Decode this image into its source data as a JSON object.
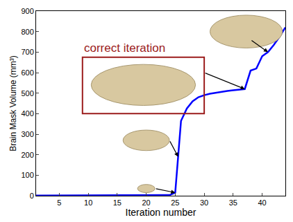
{
  "chart_data": {
    "type": "line",
    "x_label": "Iteration number",
    "y_label": "Brain Mask Volume (mm³)",
    "x": [
      1,
      2,
      3,
      4,
      5,
      6,
      7,
      8,
      9,
      10,
      11,
      12,
      13,
      14,
      15,
      16,
      17,
      18,
      19,
      20,
      21,
      22,
      23,
      24,
      25,
      26,
      27,
      28,
      29,
      30,
      31,
      32,
      33,
      34,
      35,
      36,
      37,
      38,
      39,
      40,
      41,
      42,
      43,
      44
    ],
    "values": [
      1,
      1,
      1,
      1,
      1,
      1,
      1,
      1,
      1,
      1,
      1,
      1,
      1,
      1,
      1,
      1,
      1,
      1,
      1,
      2,
      2,
      2,
      2,
      3,
      15,
      365,
      425,
      460,
      480,
      490,
      497,
      502,
      507,
      511,
      514,
      517,
      520,
      610,
      620,
      680,
      700,
      735,
      775,
      820
    ],
    "color": "#0000ff",
    "xlim": [
      1,
      44
    ],
    "ylim": [
      0,
      900
    ],
    "xticks": [
      5,
      10,
      15,
      20,
      25,
      30,
      35,
      40
    ],
    "yticks": [
      0,
      100,
      200,
      300,
      400,
      500,
      600,
      700,
      800,
      900
    ],
    "grid": false,
    "annotations": [
      {
        "text": "correct iteration",
        "x": 37,
        "y": 520
      }
    ]
  }
}
